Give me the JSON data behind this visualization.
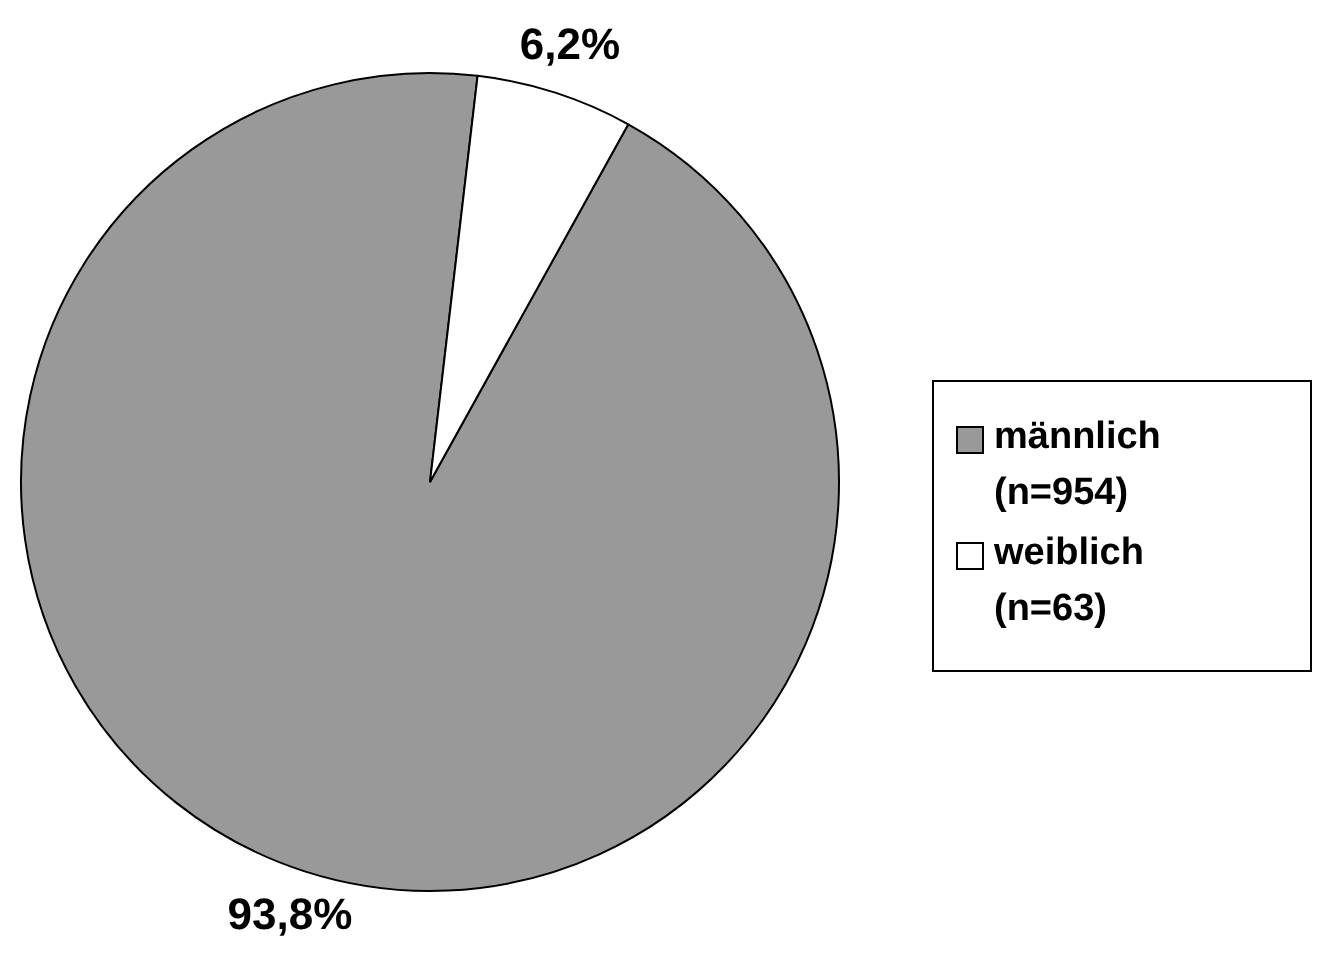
{
  "chart_data": {
    "type": "pie",
    "categories": [
      "männlich (n=954)",
      "weiblich (n=63)"
    ],
    "values": [
      93.8,
      6.2
    ],
    "colors": [
      "#999999",
      "#ffffff"
    ],
    "value_labels": [
      "93,8%",
      "6,2%"
    ],
    "legend": "right"
  }
}
